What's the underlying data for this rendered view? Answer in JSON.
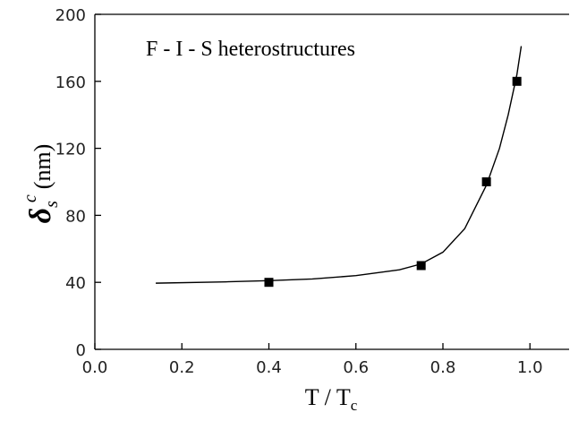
{
  "chart_data": {
    "type": "scatter",
    "annotation": "F - I - S  heterostructures",
    "x_label": {
      "main": "T / T",
      "sub": "c"
    },
    "y_label": {
      "symbol": "δ",
      "sub": "s",
      "sup": "c",
      "unit": "(nm)"
    },
    "xlim": [
      0,
      1.09
    ],
    "ylim": [
      0,
      200
    ],
    "xticks": [
      {
        "value": 0,
        "label": "0.0"
      },
      0.2,
      0.4,
      0.6,
      0.8,
      {
        "value": 1,
        "label": "1.0"
      }
    ],
    "yticks": [
      0,
      40,
      80,
      120,
      160,
      200
    ],
    "color": "#000000",
    "points": {
      "x": [
        0.4,
        0.75,
        0.9,
        0.97
      ],
      "values": [
        40,
        50,
        100,
        160
      ]
    },
    "curve": {
      "x": [
        0.14,
        0.3,
        0.4,
        0.5,
        0.6,
        0.7,
        0.75,
        0.8,
        0.85,
        0.9,
        0.93,
        0.95,
        0.97,
        0.98
      ],
      "values": [
        39.5,
        40.3,
        41,
        42,
        44,
        47.5,
        51,
        58,
        72,
        98,
        120,
        140,
        164,
        181
      ]
    }
  }
}
